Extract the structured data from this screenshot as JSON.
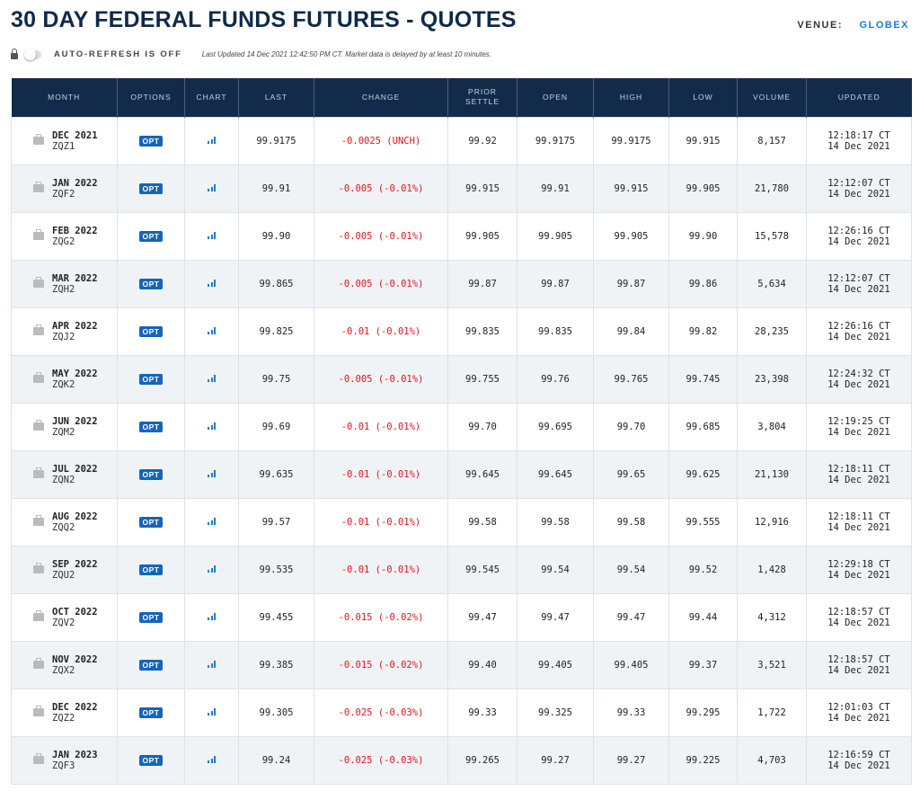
{
  "header": {
    "title": "30 DAY FEDERAL FUNDS FUTURES - QUOTES",
    "venue_label": "VENUE:",
    "venue_value": "GLOBEX"
  },
  "toolbar": {
    "auto_refresh": "AUTO-REFRESH IS OFF",
    "last_updated": "Last Updated 14 Dec 2021 12:42:50 PM CT.   Market data is delayed by at least 10 minutes."
  },
  "colors": {
    "header_bg": "#132b4b",
    "accent": "#1e7bd0",
    "negative": "#e5141b"
  },
  "table": {
    "columns": [
      "MONTH",
      "OPTIONS",
      "CHART",
      "LAST",
      "CHANGE",
      "PRIOR SETTLE",
      "OPEN",
      "HIGH",
      "LOW",
      "VOLUME",
      "UPDATED"
    ],
    "option_label": "OPT",
    "rows": [
      {
        "month": "DEC 2021",
        "code": "ZQZ1",
        "last": "99.9175",
        "change": "-0.0025 (UNCH)",
        "prior": "99.92",
        "open": "99.9175",
        "high": "99.9175",
        "low": "99.915",
        "volume": "8,157",
        "time": "12:18:17 CT",
        "date": "14 Dec 2021"
      },
      {
        "month": "JAN 2022",
        "code": "ZQF2",
        "last": "99.91",
        "change": "-0.005 (-0.01%)",
        "prior": "99.915",
        "open": "99.91",
        "high": "99.915",
        "low": "99.905",
        "volume": "21,780",
        "time": "12:12:07 CT",
        "date": "14 Dec 2021"
      },
      {
        "month": "FEB 2022",
        "code": "ZQG2",
        "last": "99.90",
        "change": "-0.005 (-0.01%)",
        "prior": "99.905",
        "open": "99.905",
        "high": "99.905",
        "low": "99.90",
        "volume": "15,578",
        "time": "12:26:16 CT",
        "date": "14 Dec 2021"
      },
      {
        "month": "MAR 2022",
        "code": "ZQH2",
        "last": "99.865",
        "change": "-0.005 (-0.01%)",
        "prior": "99.87",
        "open": "99.87",
        "high": "99.87",
        "low": "99.86",
        "volume": "5,634",
        "time": "12:12:07 CT",
        "date": "14 Dec 2021"
      },
      {
        "month": "APR 2022",
        "code": "ZQJ2",
        "last": "99.825",
        "change": "-0.01 (-0.01%)",
        "prior": "99.835",
        "open": "99.835",
        "high": "99.84",
        "low": "99.82",
        "volume": "28,235",
        "time": "12:26:16 CT",
        "date": "14 Dec 2021"
      },
      {
        "month": "MAY 2022",
        "code": "ZQK2",
        "last": "99.75",
        "change": "-0.005 (-0.01%)",
        "prior": "99.755",
        "open": "99.76",
        "high": "99.765",
        "low": "99.745",
        "volume": "23,398",
        "time": "12:24:32 CT",
        "date": "14 Dec 2021"
      },
      {
        "month": "JUN 2022",
        "code": "ZQM2",
        "last": "99.69",
        "change": "-0.01 (-0.01%)",
        "prior": "99.70",
        "open": "99.695",
        "high": "99.70",
        "low": "99.685",
        "volume": "3,804",
        "time": "12:19:25 CT",
        "date": "14 Dec 2021"
      },
      {
        "month": "JUL 2022",
        "code": "ZQN2",
        "last": "99.635",
        "change": "-0.01 (-0.01%)",
        "prior": "99.645",
        "open": "99.645",
        "high": "99.65",
        "low": "99.625",
        "volume": "21,130",
        "time": "12:18:11 CT",
        "date": "14 Dec 2021"
      },
      {
        "month": "AUG 2022",
        "code": "ZQQ2",
        "last": "99.57",
        "change": "-0.01 (-0.01%)",
        "prior": "99.58",
        "open": "99.58",
        "high": "99.58",
        "low": "99.555",
        "volume": "12,916",
        "time": "12:18:11 CT",
        "date": "14 Dec 2021"
      },
      {
        "month": "SEP 2022",
        "code": "ZQU2",
        "last": "99.535",
        "change": "-0.01 (-0.01%)",
        "prior": "99.545",
        "open": "99.54",
        "high": "99.54",
        "low": "99.52",
        "volume": "1,428",
        "time": "12:29:18 CT",
        "date": "14 Dec 2021"
      },
      {
        "month": "OCT 2022",
        "code": "ZQV2",
        "last": "99.455",
        "change": "-0.015 (-0.02%)",
        "prior": "99.47",
        "open": "99.47",
        "high": "99.47",
        "low": "99.44",
        "volume": "4,312",
        "time": "12:18:57 CT",
        "date": "14 Dec 2021"
      },
      {
        "month": "NOV 2022",
        "code": "ZQX2",
        "last": "99.385",
        "change": "-0.015 (-0.02%)",
        "prior": "99.40",
        "open": "99.405",
        "high": "99.405",
        "low": "99.37",
        "volume": "3,521",
        "time": "12:18:57 CT",
        "date": "14 Dec 2021"
      },
      {
        "month": "DEC 2022",
        "code": "ZQZ2",
        "last": "99.305",
        "change": "-0.025 (-0.03%)",
        "prior": "99.33",
        "open": "99.325",
        "high": "99.33",
        "low": "99.295",
        "volume": "1,722",
        "time": "12:01:03 CT",
        "date": "14 Dec 2021"
      },
      {
        "month": "JAN 2023",
        "code": "ZQF3",
        "last": "99.24",
        "change": "-0.025 (-0.03%)",
        "prior": "99.265",
        "open": "99.27",
        "high": "99.27",
        "low": "99.225",
        "volume": "4,703",
        "time": "12:16:59 CT",
        "date": "14 Dec 2021"
      }
    ]
  }
}
